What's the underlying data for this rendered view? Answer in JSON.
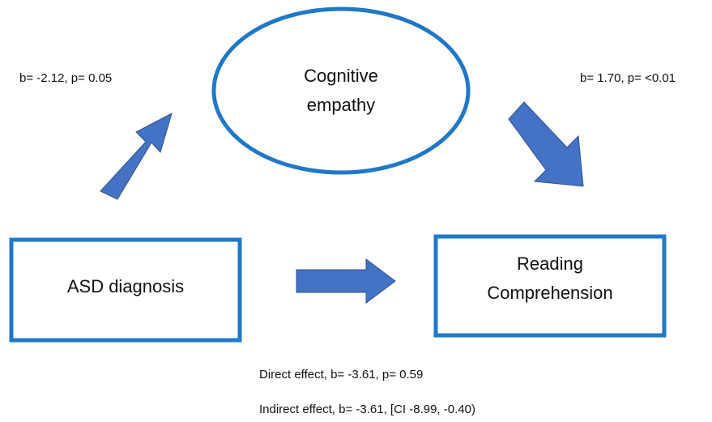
{
  "nodes": [
    {
      "label": [
        "Cognitive",
        "empathy"
      ]
    },
    {
      "label": [
        "ASD diagnosis"
      ]
    },
    {
      "label": [
        "Reading",
        "Comprehension"
      ]
    }
  ],
  "edges": [
    {
      "label": "b= -2.12, p= 0.05"
    },
    {
      "label": "b= 1.70, p= <0.01"
    }
  ],
  "notes": [
    "Direct effect, b= -3.61, p= 0.59",
    "Indirect effect, b= -3.61, [CI -8.99, -0.40)"
  ]
}
